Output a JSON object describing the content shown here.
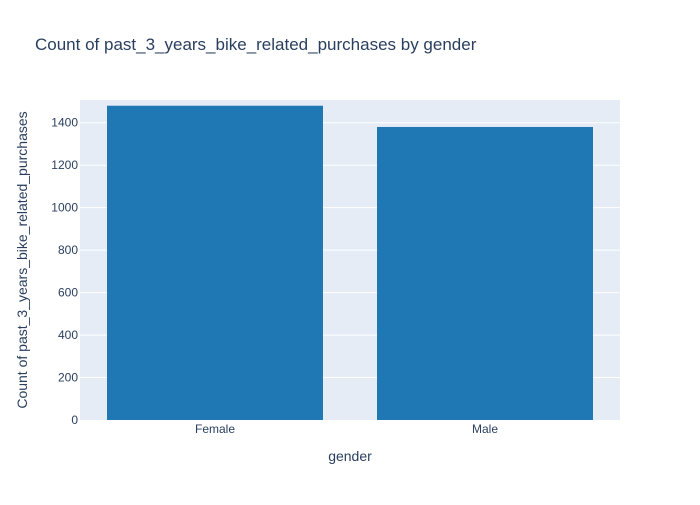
{
  "chart_data": {
    "type": "bar",
    "title": "Count of past_3_years_bike_related_purchases by gender",
    "xlabel": "gender",
    "ylabel": "Count of past_3_years_bike_related_purchases",
    "categories": [
      "Female",
      "Male"
    ],
    "values": [
      1480,
      1380
    ],
    "ylim": [
      0,
      1507
    ],
    "yticks": [
      0,
      200,
      400,
      600,
      800,
      1000,
      1200,
      1400
    ],
    "grid": true,
    "legend": "none",
    "colors": {
      "bar": "#1f77b4",
      "plot_background": "#e5ecf6",
      "grid": "#ffffff",
      "text": "#2a3f5f",
      "page_background": "#ffffff"
    }
  }
}
